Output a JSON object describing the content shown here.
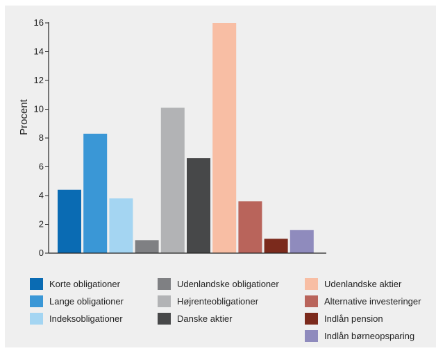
{
  "chart_data": {
    "type": "bar",
    "ylabel": "Procent",
    "ylim": [
      0,
      16
    ],
    "yticks": [
      0,
      2,
      4,
      6,
      8,
      10,
      12,
      14,
      16
    ],
    "grid": false,
    "legend_position": "bottom",
    "categories": [
      "Korte obligationer",
      "Lange obligationer",
      "Indeksobligationer",
      "Udenlandske obligationer",
      "Højrenteobligationer",
      "Danske aktier",
      "Udenlandske aktier",
      "Alternative investeringer",
      "Indlån pension",
      "Indlån børneopsparing"
    ],
    "values": [
      4.4,
      8.3,
      3.8,
      0.9,
      10.1,
      6.6,
      16.0,
      3.6,
      1.0,
      1.6
    ],
    "colors": [
      "#0a6bb3",
      "#3a97d6",
      "#a4d5f2",
      "#7f8083",
      "#b2b3b5",
      "#474849",
      "#f8bea4",
      "#b9645b",
      "#7b2a1c",
      "#8f8bbd"
    ],
    "legend_columns": [
      [
        0,
        1,
        2
      ],
      [
        3,
        4,
        5
      ],
      [
        6,
        7,
        8,
        9
      ]
    ]
  }
}
